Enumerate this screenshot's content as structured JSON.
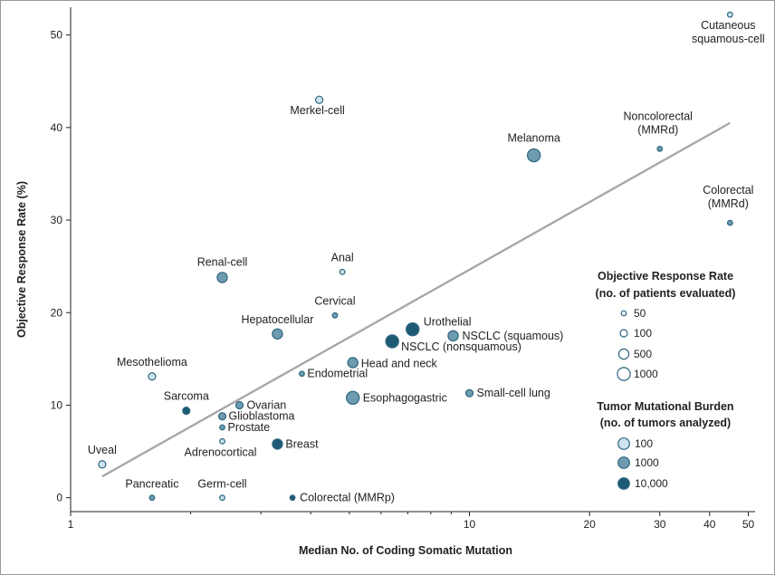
{
  "chart_data": {
    "type": "scatter",
    "xscale": "log",
    "xlim": [
      1,
      52
    ],
    "ylim": [
      -1.5,
      53
    ],
    "xticks": [
      1,
      10,
      20,
      30,
      40,
      50
    ],
    "yticks": [
      0,
      10,
      20,
      30,
      40,
      50
    ],
    "xlabel": "Median No. of Coding Somatic Mutation",
    "ylabel": "Objective Response Rate (%)",
    "trendline": {
      "from": {
        "x": 1.2,
        "y": 2.3
      },
      "to": {
        "x": 45,
        "y": 40.5
      }
    },
    "colors": {
      "tmb_100": "#cfe3ee",
      "tmb_1000": "#6f9bb0",
      "tmb_10000": "#1e5a73",
      "trend": "#a8a8a8",
      "stroke": "#2e6680"
    },
    "points": [
      {
        "label": "Cutaneous squamous-cell",
        "x": 45,
        "y": 52.2,
        "n_patients": 50,
        "tmb": 100
      },
      {
        "label": "Merkel-cell",
        "x": 4.2,
        "y": 43,
        "n_patients": 100,
        "tmb": 100
      },
      {
        "label": "Melanoma",
        "x": 14.5,
        "y": 37,
        "n_patients": 1000,
        "tmb": 1000
      },
      {
        "label": "Noncolorectal (MMRd)",
        "x": 30,
        "y": 37.7,
        "n_patients": 50,
        "tmb": 1000
      },
      {
        "label": "Colorectal (MMRd)",
        "x": 45,
        "y": 29.7,
        "n_patients": 50,
        "tmb": 1000
      },
      {
        "label": "Renal-cell",
        "x": 2.4,
        "y": 23.8,
        "n_patients": 500,
        "tmb": 1000
      },
      {
        "label": "Anal",
        "x": 4.8,
        "y": 24.4,
        "n_patients": 50,
        "tmb": 100
      },
      {
        "label": "Cervical",
        "x": 4.6,
        "y": 19.7,
        "n_patients": 50,
        "tmb": 1000
      },
      {
        "label": "Hepatocellular",
        "x": 3.3,
        "y": 17.7,
        "n_patients": 500,
        "tmb": 1000
      },
      {
        "label": "Urothelial",
        "x": 7.2,
        "y": 18.2,
        "n_patients": 1000,
        "tmb": 10000
      },
      {
        "label": "NSCLC (squamous)",
        "x": 9.1,
        "y": 17.5,
        "n_patients": 500,
        "tmb": 1000
      },
      {
        "label": "NSCLC (nonsquamous)",
        "x": 6.4,
        "y": 16.9,
        "n_patients": 1000,
        "tmb": 10000
      },
      {
        "label": "Head and neck",
        "x": 5.1,
        "y": 14.6,
        "n_patients": 500,
        "tmb": 1000
      },
      {
        "label": "Endometrial",
        "x": 3.8,
        "y": 13.4,
        "n_patients": 50,
        "tmb": 1000
      },
      {
        "label": "Mesothelioma",
        "x": 1.6,
        "y": 13.1,
        "n_patients": 100,
        "tmb": 100
      },
      {
        "label": "Esophagogastric",
        "x": 5.1,
        "y": 10.8,
        "n_patients": 1000,
        "tmb": 1000
      },
      {
        "label": "Small-cell lung",
        "x": 10,
        "y": 11.3,
        "n_patients": 100,
        "tmb": 1000
      },
      {
        "label": "Sarcoma",
        "x": 1.95,
        "y": 9.4,
        "n_patients": 100,
        "tmb": 10000
      },
      {
        "label": "Ovarian",
        "x": 2.65,
        "y": 10,
        "n_patients": 100,
        "tmb": 1000
      },
      {
        "label": "Glioblastoma",
        "x": 2.4,
        "y": 8.8,
        "n_patients": 100,
        "tmb": 1000
      },
      {
        "label": "Prostate",
        "x": 2.4,
        "y": 7.6,
        "n_patients": 50,
        "tmb": 1000
      },
      {
        "label": "Adrenocortical",
        "x": 2.4,
        "y": 6.1,
        "n_patients": 50,
        "tmb": 100
      },
      {
        "label": "Breast",
        "x": 3.3,
        "y": 5.8,
        "n_patients": 500,
        "tmb": 10000
      },
      {
        "label": "Uveal",
        "x": 1.2,
        "y": 3.6,
        "n_patients": 100,
        "tmb": 100
      },
      {
        "label": "Pancreatic",
        "x": 1.6,
        "y": 0,
        "n_patients": 50,
        "tmb": 1000
      },
      {
        "label": "Germ-cell",
        "x": 2.4,
        "y": 0,
        "n_patients": 50,
        "tmb": 100
      },
      {
        "label": "Colorectal (MMRp)",
        "x": 3.6,
        "y": 0,
        "n_patients": 50,
        "tmb": 10000
      }
    ],
    "legend_size": {
      "title_line1": "Objective Response Rate",
      "title_line2": "(no. of patients evaluated)",
      "items": [
        {
          "label": "50",
          "n_patients": 50
        },
        {
          "label": "100",
          "n_patients": 100
        },
        {
          "label": "500",
          "n_patients": 500
        },
        {
          "label": "1000",
          "n_patients": 1000
        }
      ]
    },
    "legend_color": {
      "title_line1": "Tumor Mutational Burden",
      "title_line2": "(no. of tumors analyzed)",
      "items": [
        {
          "label": "100",
          "tmb": 100
        },
        {
          "label": "1000",
          "tmb": 1000
        },
        {
          "label": "10,000",
          "tmb": 10000
        }
      ]
    }
  }
}
